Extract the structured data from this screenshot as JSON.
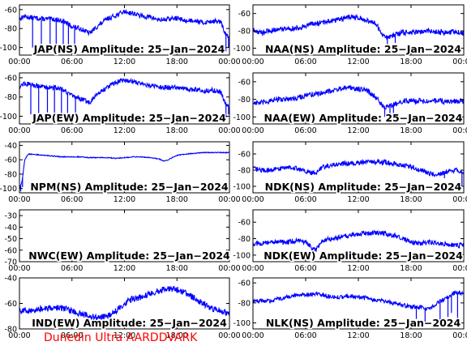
{
  "footer": {
    "text": "Dunedin Ultra AARDDVARK",
    "color": "#ff0000"
  },
  "style": {
    "trace_color": "#0000ff",
    "axis_color": "#000000",
    "background": "#ffffff"
  },
  "chart_data": [
    {
      "id": "jap-ns",
      "type": "line",
      "title": "JAP(NS) Amplitude: 25−Jan−2024",
      "ylim": [
        -108,
        -55
      ],
      "yticks": [
        -100,
        -80,
        -60
      ],
      "xlim": [
        0,
        24
      ],
      "xticks": [
        "00:00",
        "06:00",
        "12:00",
        "18:00",
        "00:00"
      ],
      "profile": {
        "x": [
          0,
          0.5,
          1,
          2,
          3,
          4,
          5,
          6,
          7,
          8,
          9,
          10,
          11,
          12,
          13,
          14,
          15,
          16,
          17,
          18,
          19,
          20,
          21,
          22,
          23,
          23.5,
          24
        ],
        "y": [
          -70,
          -67,
          -68,
          -69,
          -70,
          -70,
          -72,
          -78,
          -80,
          -85,
          -77,
          -70,
          -66,
          -62,
          -64,
          -67,
          -68,
          -71,
          -70,
          -69,
          -72,
          -71,
          -74,
          -72,
          -73,
          -85,
          -90
        ]
      },
      "noise": 2.5,
      "dropouts": [
        [
          1.5,
          -100
        ],
        [
          2.5,
          -102
        ],
        [
          3.5,
          -96
        ],
        [
          4.2,
          -100
        ],
        [
          5.0,
          -98
        ],
        [
          5.6,
          -104
        ],
        [
          6.3,
          -96
        ],
        [
          23.6,
          -104
        ],
        [
          23.9,
          -100
        ]
      ]
    },
    {
      "id": "naa-ns",
      "type": "line",
      "title": "NAA(NS) Amplitude: 25−Jan−2024",
      "ylim": [
        -108,
        -50
      ],
      "yticks": [
        -100,
        -80,
        -60
      ],
      "xlim": [
        0,
        24
      ],
      "xticks": [
        "00:00",
        "06:00",
        "12:00",
        "18:00",
        "00:00"
      ],
      "profile": {
        "x": [
          0,
          1,
          2,
          3,
          4,
          5,
          6,
          7,
          8,
          9,
          10,
          11,
          12,
          13,
          14,
          15,
          16,
          17,
          18,
          19,
          20,
          21,
          22,
          23,
          24
        ],
        "y": [
          -80,
          -82,
          -80,
          -78,
          -77,
          -77,
          -74,
          -72,
          -70,
          -68,
          -66,
          -64,
          -65,
          -68,
          -72,
          -88,
          -85,
          -82,
          -82,
          -81,
          -80,
          -81,
          -82,
          -81,
          -83
        ]
      },
      "noise": 3,
      "dropouts": [
        [
          15.3,
          -96
        ],
        [
          16.2,
          -94
        ]
      ]
    },
    {
      "id": "jap-ew",
      "type": "line",
      "title": "JAP(EW) Amplitude: 25−Jan−2024",
      "ylim": [
        -108,
        -55
      ],
      "yticks": [
        -100,
        -80,
        -60
      ],
      "xlim": [
        0,
        24
      ],
      "xticks": [
        "00:00",
        "06:00",
        "12:00",
        "18:00",
        "00:00"
      ],
      "profile": {
        "x": [
          0,
          0.5,
          1,
          2,
          3,
          4,
          5,
          6,
          7,
          8,
          9,
          10,
          11,
          12,
          13,
          14,
          15,
          16,
          17,
          18,
          19,
          20,
          21,
          22,
          23,
          23.5,
          24
        ],
        "y": [
          -69,
          -66,
          -67,
          -68,
          -70,
          -70,
          -72,
          -79,
          -82,
          -86,
          -76,
          -70,
          -65,
          -62,
          -64,
          -66,
          -68,
          -70,
          -70,
          -70,
          -72,
          -72,
          -74,
          -73,
          -75,
          -86,
          -92
        ]
      },
      "noise": 2.5,
      "dropouts": [
        [
          1.3,
          -98
        ],
        [
          2.2,
          -102
        ],
        [
          3.2,
          -96
        ],
        [
          4.0,
          -102
        ],
        [
          4.8,
          -100
        ],
        [
          5.5,
          -104
        ],
        [
          6.4,
          -98
        ],
        [
          23.6,
          -104
        ],
        [
          23.9,
          -98
        ]
      ]
    },
    {
      "id": "naa-ew",
      "type": "line",
      "title": "NAA(EW) Amplitude: 25−Jan−2024",
      "ylim": [
        -108,
        -50
      ],
      "yticks": [
        -100,
        -80,
        -60
      ],
      "xlim": [
        0,
        24
      ],
      "xticks": [
        "00:00",
        "06:00",
        "12:00",
        "18:00",
        "00:00"
      ],
      "profile": {
        "x": [
          0,
          1,
          2,
          3,
          4,
          5,
          6,
          7,
          8,
          9,
          10,
          11,
          12,
          13,
          14,
          15,
          16,
          17,
          18,
          19,
          20,
          21,
          22,
          23,
          24
        ],
        "y": [
          -84,
          -84,
          -82,
          -80,
          -80,
          -78,
          -76,
          -74,
          -72,
          -70,
          -68,
          -67,
          -68,
          -70,
          -78,
          -90,
          -86,
          -82,
          -82,
          -82,
          -81,
          -82,
          -83,
          -82,
          -82
        ]
      },
      "noise": 3,
      "dropouts": [
        [
          15.0,
          -100
        ],
        [
          15.6,
          -98
        ],
        [
          16.0,
          -96
        ]
      ]
    },
    {
      "id": "npm-ns",
      "type": "line",
      "title": "NPM(NS) Amplitude: 25−Jan−2024",
      "ylim": [
        -106,
        -35
      ],
      "yticks": [
        -100,
        -80,
        -60,
        -40
      ],
      "xlim": [
        0,
        24
      ],
      "xticks": [
        "00:00",
        "06:00",
        "12:00",
        "18:00",
        "00:00"
      ],
      "profile": {
        "x": [
          0,
          0.3,
          0.6,
          1,
          2,
          3,
          4,
          5,
          6,
          7,
          8,
          9,
          10,
          11,
          12,
          13,
          14,
          15,
          16,
          16.5,
          17,
          18,
          19,
          20,
          21,
          22,
          23,
          24
        ],
        "y": [
          -100,
          -90,
          -60,
          -52,
          -53,
          -54,
          -55,
          -56,
          -56,
          -56,
          -57,
          -57,
          -57,
          -58,
          -57,
          -56,
          -56,
          -57,
          -59,
          -62,
          -60,
          -54,
          -52,
          -51,
          -50,
          -50,
          -50,
          -50
        ]
      },
      "noise": 0.6,
      "dropouts": [
        [
          0.15,
          -104
        ],
        [
          0.35,
          -98
        ]
      ]
    },
    {
      "id": "ndk-ns",
      "type": "line",
      "title": "NDK(NS) Amplitude: 25−Jan−2024",
      "ylim": [
        -108,
        -45
      ],
      "yticks": [
        -100,
        -80,
        -60
      ],
      "xlim": [
        0,
        24
      ],
      "xticks": [
        "00:00",
        "06:00",
        "12:00",
        "18:00",
        "00:00"
      ],
      "profile": {
        "x": [
          0,
          1,
          2,
          3,
          4,
          5,
          6,
          7,
          8,
          9,
          10,
          11,
          12,
          13,
          14,
          15,
          16,
          17,
          18,
          19,
          20,
          21,
          22,
          23,
          24
        ],
        "y": [
          -78,
          -80,
          -80,
          -78,
          -76,
          -78,
          -82,
          -84,
          -76,
          -74,
          -72,
          -72,
          -71,
          -70,
          -70,
          -70,
          -72,
          -74,
          -76,
          -80,
          -84,
          -86,
          -82,
          -80,
          -82
        ]
      },
      "noise": 3,
      "dropouts": [
        [
          21.8,
          -90
        ],
        [
          23.8,
          -100
        ]
      ]
    },
    {
      "id": "nwc-ew",
      "type": "line",
      "title": "NWC(EW) Amplitude: 25−Jan−2024",
      "ylim": [
        -70,
        -25
      ],
      "yticks": [
        -70,
        -60,
        -50,
        -40,
        -30
      ],
      "xlim": [
        0,
        24
      ],
      "xticks": [
        "00:00",
        "06:00",
        "12:00",
        "18:00",
        "00:00"
      ],
      "profile": {
        "x": [],
        "y": []
      },
      "noise": 0,
      "dropouts": []
    },
    {
      "id": "ndk-ew",
      "type": "line",
      "title": "NDK(EW) Amplitude: 25−Jan−2024",
      "ylim": [
        -108,
        -45
      ],
      "yticks": [
        -100,
        -80,
        -60
      ],
      "xlim": [
        0,
        24
      ],
      "xticks": [
        "00:00",
        "06:00",
        "12:00",
        "18:00",
        "00:00"
      ],
      "profile": {
        "x": [
          0,
          1,
          2,
          3,
          4,
          5,
          6,
          7,
          8,
          9,
          10,
          11,
          12,
          13,
          14,
          15,
          16,
          17,
          18,
          19,
          20,
          21,
          22,
          23,
          24
        ],
        "y": [
          -86,
          -86,
          -84,
          -84,
          -84,
          -82,
          -84,
          -94,
          -82,
          -80,
          -78,
          -76,
          -74,
          -73,
          -73,
          -74,
          -76,
          -80,
          -84,
          -86,
          -84,
          -86,
          -86,
          -88,
          -88
        ]
      },
      "noise": 3,
      "dropouts": [
        [
          7.2,
          -96
        ]
      ]
    },
    {
      "id": "ind-ew",
      "type": "line",
      "title": "IND(EW) Amplitude: 25−Jan−2024",
      "ylim": [
        -80,
        -40
      ],
      "yticks": [
        -80,
        -60,
        -40
      ],
      "xlim": [
        0,
        24
      ],
      "xticks": [
        "00:00",
        "06:00",
        "12:00",
        "18:00",
        "00:00"
      ],
      "profile": {
        "x": [
          0,
          1,
          2,
          3,
          4,
          5,
          6,
          7,
          8,
          9,
          10,
          11,
          12,
          13,
          14,
          15,
          16,
          17,
          18,
          19,
          20,
          21,
          22,
          23,
          24
        ],
        "y": [
          -65,
          -66,
          -65,
          -64,
          -63,
          -64,
          -66,
          -68,
          -70,
          -71,
          -70,
          -66,
          -60,
          -56,
          -55,
          -52,
          -50,
          -48,
          -49,
          -52,
          -56,
          -60,
          -64,
          -66,
          -68
        ]
      },
      "noise": 2.5,
      "dropouts": []
    },
    {
      "id": "nlk-ns",
      "type": "line",
      "title": "NLK(NS) Amplitude: 25−Jan−2024",
      "ylim": [
        -106,
        -55
      ],
      "yticks": [
        -100,
        -80,
        -60
      ],
      "xlim": [
        0,
        24
      ],
      "xticks": [
        "00:00",
        "06:00",
        "12:00",
        "18:00",
        "00:00"
      ],
      "profile": {
        "x": [
          0,
          1,
          2,
          3,
          4,
          5,
          6,
          7,
          8,
          9,
          10,
          11,
          12,
          13,
          14,
          15,
          16,
          17,
          18,
          19,
          20,
          21,
          22,
          22.5,
          23,
          24
        ],
        "y": [
          -78,
          -78,
          -78,
          -76,
          -74,
          -72,
          -72,
          -71,
          -72,
          -74,
          -74,
          -73,
          -74,
          -75,
          -78,
          -78,
          -80,
          -82,
          -84,
          -84,
          -86,
          -80,
          -75,
          -72,
          -70,
          -70
        ]
      },
      "noise": 2,
      "dropouts": [
        [
          18.6,
          -96
        ],
        [
          19.6,
          -100
        ],
        [
          21.3,
          -98
        ],
        [
          22.2,
          -94
        ],
        [
          22.6,
          -90
        ],
        [
          23.3,
          -96
        ]
      ]
    }
  ]
}
